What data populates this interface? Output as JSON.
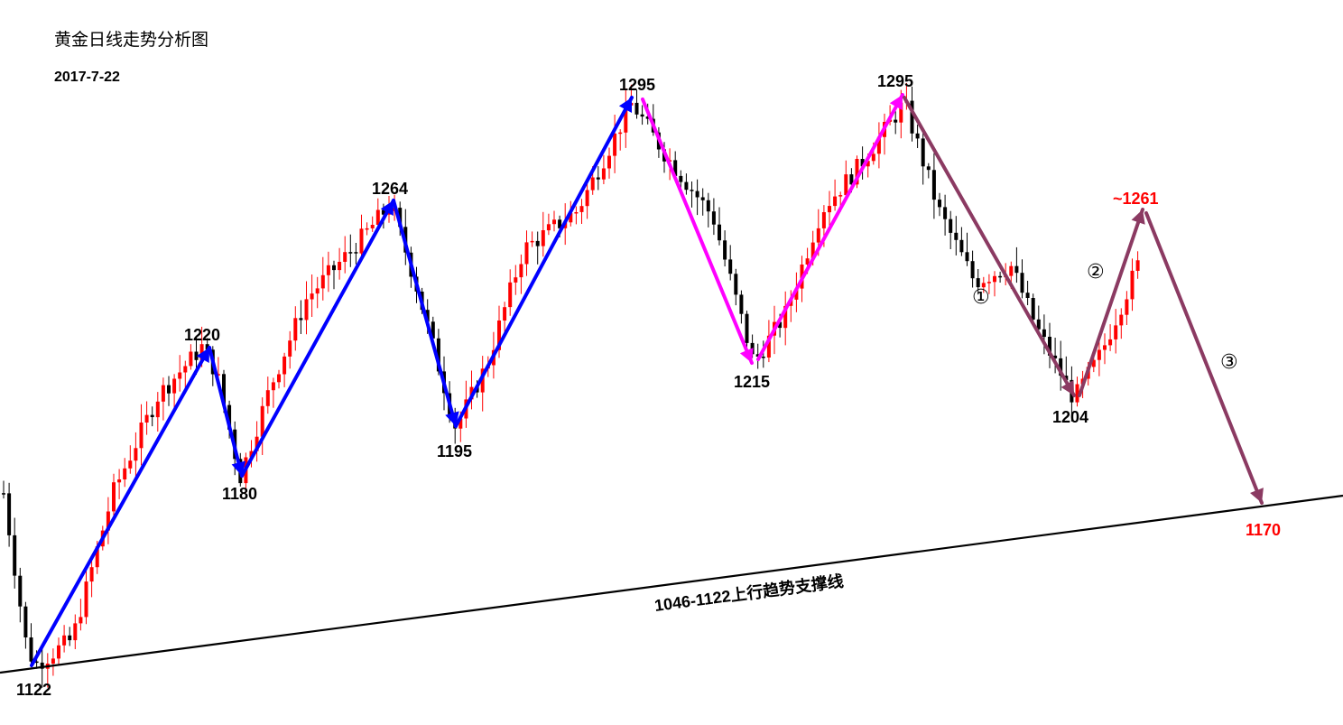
{
  "header": {
    "title": "黄金日线走势分析图",
    "date": "2017-7-22"
  },
  "chart_data": {
    "type": "candlestick",
    "instrument_title": "黄金日线走势分析图",
    "date": "2017-7-22",
    "colors": {
      "up": "#ff0000",
      "down": "#000000",
      "wave_up": "#0000ff",
      "wave_mid": "#ff00ff",
      "wave_projection": "#8b3a62",
      "support_line": "#000000",
      "projection_label": "#ff0000"
    },
    "swing_points": [
      {
        "label": "1122",
        "price": 1122,
        "kind": "low"
      },
      {
        "label": "1220",
        "price": 1220,
        "kind": "high"
      },
      {
        "label": "1180",
        "price": 1180,
        "kind": "low"
      },
      {
        "label": "1264",
        "price": 1264,
        "kind": "high"
      },
      {
        "label": "1195",
        "price": 1195,
        "kind": "low"
      },
      {
        "label": "1295",
        "price": 1295,
        "kind": "high"
      },
      {
        "label": "1215",
        "price": 1215,
        "kind": "low"
      },
      {
        "label": "1295",
        "price": 1295,
        "kind": "high"
      },
      {
        "label": "1204",
        "price": 1204,
        "kind": "low"
      },
      {
        "label": "~1261",
        "price": 1261,
        "kind": "projected-high"
      },
      {
        "label": "1170",
        "price": 1170,
        "kind": "projected-low"
      }
    ],
    "wave_labels": [
      "①",
      "②",
      "③"
    ],
    "trendline": {
      "label": "1046-1122上行趋势支撑线",
      "from_price": 1046,
      "to_price": 1122
    },
    "candles": []
  }
}
